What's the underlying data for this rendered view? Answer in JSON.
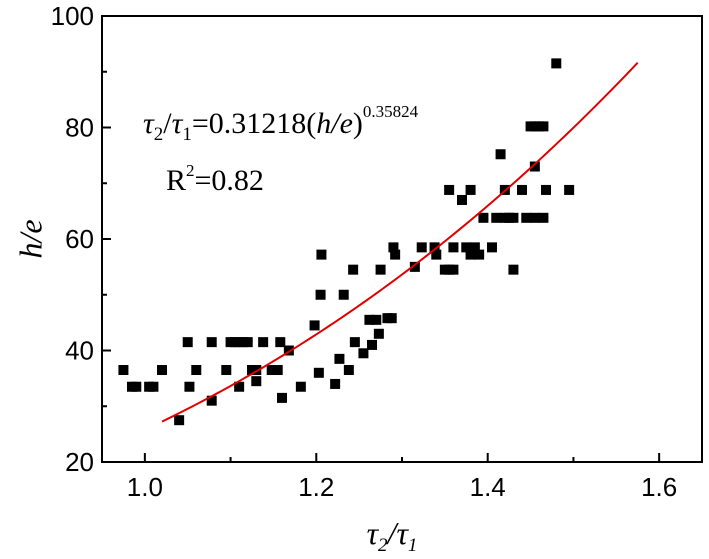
{
  "chart_data": {
    "type": "scatter",
    "xlim": [
      0.95,
      1.65
    ],
    "ylim": [
      20,
      100
    ],
    "x_ticks": [
      1.0,
      1.2,
      1.4,
      1.6
    ],
    "x_tick_labels": [
      "1.0",
      "1.2",
      "1.4",
      "1.6"
    ],
    "y_ticks": [
      20,
      40,
      60,
      80,
      100
    ],
    "y_tick_labels": [
      "20",
      "40",
      "60",
      "80",
      "100"
    ],
    "xlabel": {
      "base": "τ",
      "sub1": "2",
      "slash": "/",
      "base2": "τ",
      "sub2": "1"
    },
    "ylabel": "h/e",
    "grid": false,
    "marker_color": "#000000",
    "fit_color": "#e00000",
    "annotations": {
      "equation": {
        "lhs_tau": "τ",
        "lhs_sub2": "2",
        "slash": "/",
        "lhs_tau2": "τ",
        "lhs_sub1": "1",
        "eq": "=0.31218(",
        "he": "h/e",
        "close": ")",
        "exponent": "0.35824"
      },
      "r2": {
        "r": "R",
        "sup": "2",
        "value": "=0.82"
      }
    },
    "fit": {
      "coefficient": 0.31218,
      "exponent": 0.35824,
      "x_range": [
        1.02,
        1.575
      ]
    },
    "series": [
      {
        "points": [
          [
            0.975,
            36.5
          ],
          [
            0.985,
            33.5
          ],
          [
            0.99,
            33.5
          ],
          [
            1.005,
            33.5
          ],
          [
            1.01,
            33.5
          ],
          [
            1.02,
            36.5
          ],
          [
            1.04,
            27.5
          ],
          [
            1.05,
            41.5
          ],
          [
            1.052,
            33.5
          ],
          [
            1.06,
            36.5
          ],
          [
            1.078,
            41.5
          ],
          [
            1.078,
            31
          ],
          [
            1.095,
            36.5
          ],
          [
            1.1,
            41.5
          ],
          [
            1.105,
            41.5
          ],
          [
            1.11,
            41.5
          ],
          [
            1.11,
            33.5
          ],
          [
            1.115,
            41.5
          ],
          [
            1.12,
            41.5
          ],
          [
            1.125,
            36.5
          ],
          [
            1.13,
            36.5
          ],
          [
            1.13,
            34.5
          ],
          [
            1.138,
            41.5
          ],
          [
            1.148,
            36.5
          ],
          [
            1.155,
            36.5
          ],
          [
            1.158,
            41.5
          ],
          [
            1.16,
            31.5
          ],
          [
            1.168,
            40
          ],
          [
            1.182,
            33.5
          ],
          [
            1.198,
            44.5
          ],
          [
            1.203,
            36
          ],
          [
            1.206,
            57.2
          ],
          [
            1.205,
            50
          ],
          [
            1.222,
            34
          ],
          [
            1.227,
            38.5
          ],
          [
            1.232,
            50
          ],
          [
            1.238,
            36.5
          ],
          [
            1.243,
            54.5
          ],
          [
            1.245,
            41.5
          ],
          [
            1.255,
            39.5
          ],
          [
            1.262,
            45.5
          ],
          [
            1.265,
            41
          ],
          [
            1.27,
            45.5
          ],
          [
            1.273,
            43
          ],
          [
            1.275,
            54.5
          ],
          [
            1.283,
            45.8
          ],
          [
            1.288,
            45.8
          ],
          [
            1.29,
            58.5
          ],
          [
            1.292,
            57.2
          ],
          [
            1.315,
            55
          ],
          [
            1.323,
            58.5
          ],
          [
            1.338,
            58.5
          ],
          [
            1.34,
            57.2
          ],
          [
            1.35,
            54.5
          ],
          [
            1.355,
            68.8
          ],
          [
            1.355,
            54.5
          ],
          [
            1.36,
            58.5
          ],
          [
            1.36,
            54.5
          ],
          [
            1.37,
            67
          ],
          [
            1.375,
            58.5
          ],
          [
            1.38,
            68.8
          ],
          [
            1.38,
            57.2
          ],
          [
            1.385,
            58.5
          ],
          [
            1.39,
            57.2
          ],
          [
            1.395,
            63.8
          ],
          [
            1.405,
            58.5
          ],
          [
            1.41,
            63.8
          ],
          [
            1.415,
            75.2
          ],
          [
            1.42,
            68.8
          ],
          [
            1.42,
            63.8
          ],
          [
            1.425,
            63.8
          ],
          [
            1.43,
            54.5
          ],
          [
            1.43,
            63.8
          ],
          [
            1.44,
            68.8
          ],
          [
            1.445,
            63.8
          ],
          [
            1.45,
            80.2
          ],
          [
            1.455,
            73
          ],
          [
            1.455,
            80.2
          ],
          [
            1.455,
            63.8
          ],
          [
            1.46,
            80.2
          ],
          [
            1.465,
            80.2
          ],
          [
            1.465,
            63.8
          ],
          [
            1.468,
            68.8
          ],
          [
            1.48,
            91.5
          ],
          [
            1.495,
            68.8
          ]
        ]
      }
    ]
  }
}
